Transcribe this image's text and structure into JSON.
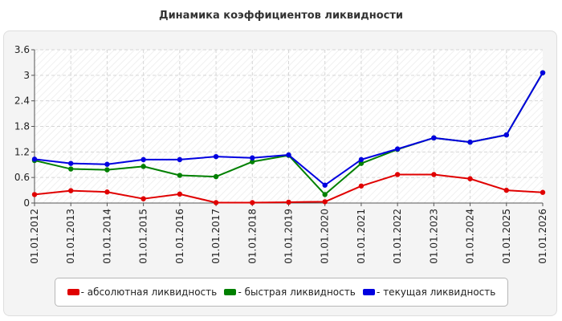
{
  "chart_data": {
    "type": "line",
    "title": "Динамика коэффициентов ликвидности",
    "xlabel": "",
    "ylabel": "",
    "categories": [
      "01.01.2012",
      "01.01.2013",
      "01.01.2014",
      "01.01.2015",
      "01.01.2016",
      "01.01.2017",
      "01.01.2018",
      "01.01.2019",
      "01.01.2020",
      "01.01.2021",
      "01.01.2022",
      "01.01.2023",
      "01.01.2024",
      "01.01.2025",
      "01.01.2026"
    ],
    "ylim": [
      0,
      3.6
    ],
    "yticks": [
      "0",
      "0.6",
      "1.2",
      "1.8",
      "2.4",
      "3",
      "3.6"
    ],
    "grid": true,
    "legend_position": "bottom",
    "series": [
      {
        "name": "- абсолютная ликвидность",
        "color": "#e00000",
        "values": [
          0.2,
          0.29,
          0.26,
          0.1,
          0.21,
          0.01,
          0.01,
          0.02,
          0.03,
          0.4,
          0.67,
          0.67,
          0.57,
          0.3,
          0.25
        ]
      },
      {
        "name": "- быстрая ликвидность",
        "color": "#008000",
        "values": [
          1.0,
          0.8,
          0.78,
          0.86,
          0.65,
          0.62,
          0.97,
          1.12,
          0.2,
          0.93,
          1.26,
          1.53,
          1.43,
          1.6,
          3.06
        ]
      },
      {
        "name": "- текущая ликвидность",
        "color": "#0000e0",
        "values": [
          1.03,
          0.93,
          0.91,
          1.02,
          1.02,
          1.09,
          1.06,
          1.13,
          0.42,
          1.02,
          1.27,
          1.53,
          1.43,
          1.6,
          3.06
        ]
      }
    ]
  }
}
